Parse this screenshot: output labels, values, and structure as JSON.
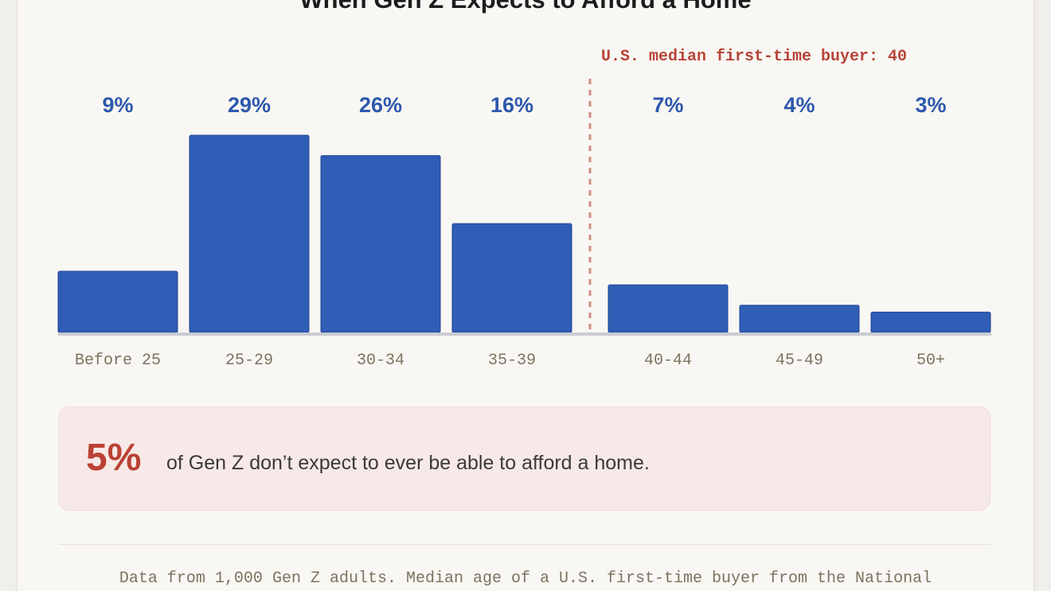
{
  "title": "When Gen Z Expects to Afford a Home",
  "chart_data": {
    "type": "bar",
    "title": "When Gen Z Expects to Afford a Home",
    "categories": [
      "Before 25",
      "25-29",
      "30-34",
      "35-39",
      "40-44",
      "45-49",
      "50+"
    ],
    "values": [
      9,
      29,
      26,
      16,
      7,
      4,
      3
    ],
    "value_labels": [
      "9%",
      "29%",
      "26%",
      "16%",
      "7%",
      "4%",
      "3%"
    ],
    "unit": "%",
    "ylim": [
      0,
      29
    ],
    "grid": false,
    "reference_line": {
      "label": "U.S. median first-time buyer: 40",
      "position": "between 35-39 and 40-44"
    },
    "colors": {
      "bar": "#305db5",
      "value_label": "#2d58ad",
      "reference": "#b84338"
    }
  },
  "callout": {
    "stat": "5%",
    "text": "of Gen Z don’t expect to ever be able to afford a home."
  },
  "footnote": "Data from 1,000 Gen Z adults. Median age of a U.S. first-time buyer from the National"
}
